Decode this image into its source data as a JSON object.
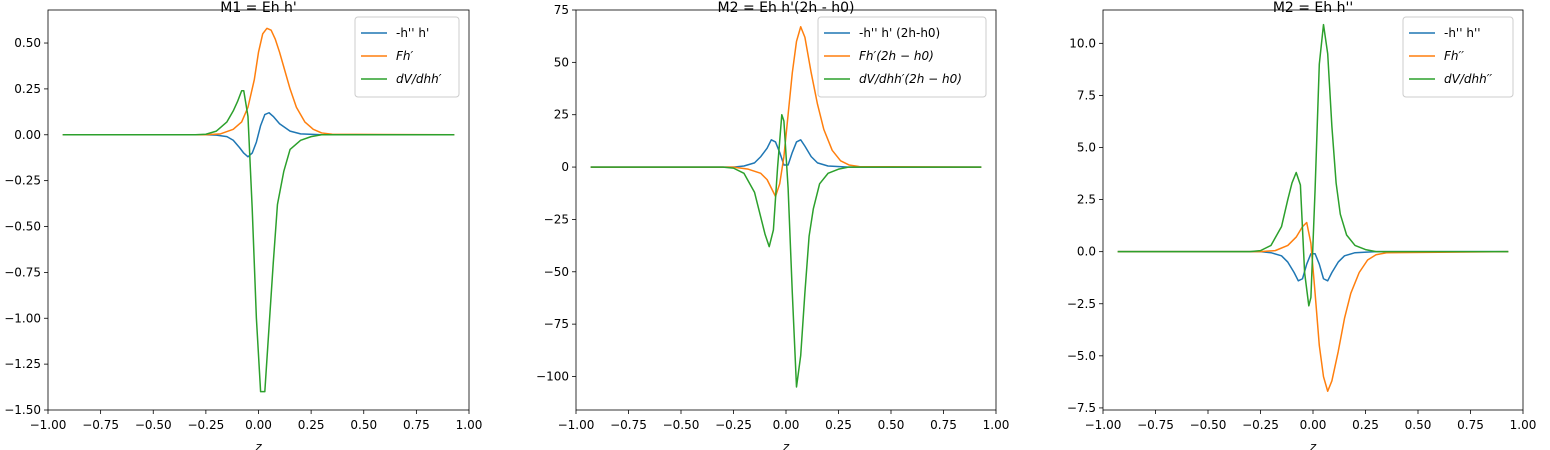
{
  "colors": {
    "blue": "#1f77b4",
    "orange": "#ff7f0e",
    "green": "#2ca02c"
  },
  "chart_data": [
    {
      "type": "line",
      "title": "M1 = Eh h'",
      "xlabel": "z",
      "ylabel": "",
      "xlim": [
        -1.0,
        1.0
      ],
      "ylim": [
        -1.5,
        0.68
      ],
      "xticks": [
        "−1.00",
        "−0.75",
        "−0.50",
        "−0.25",
        "0.00",
        "0.25",
        "0.50",
        "0.75",
        "1.00"
      ],
      "xtick_values": [
        -1.0,
        -0.75,
        -0.5,
        -0.25,
        0.0,
        0.25,
        0.5,
        0.75,
        1.0
      ],
      "yticks": [
        "−1.50",
        "−1.25",
        "−1.00",
        "−0.75",
        "−0.50",
        "−0.25",
        "0.00",
        "0.25",
        "0.50"
      ],
      "ytick_values": [
        -1.5,
        -1.25,
        -1.0,
        -0.75,
        -0.5,
        -0.25,
        0.0,
        0.25,
        0.5
      ],
      "legend_position": "top-right",
      "series": [
        {
          "name": "-h'' h'",
          "color": "#1f77b4",
          "x": [
            -0.93,
            -0.25,
            -0.2,
            -0.15,
            -0.12,
            -0.09,
            -0.07,
            -0.05,
            -0.03,
            -0.01,
            0.01,
            0.03,
            0.05,
            0.07,
            0.1,
            0.15,
            0.2,
            0.3,
            0.93
          ],
          "y": [
            0,
            0,
            -0.002,
            -0.01,
            -0.03,
            -0.07,
            -0.1,
            -0.12,
            -0.1,
            -0.04,
            0.05,
            0.11,
            0.12,
            0.1,
            0.06,
            0.02,
            0.005,
            0,
            0
          ]
        },
        {
          "name": "Fh′",
          "color": "#ff7f0e",
          "x": [
            -0.93,
            -0.25,
            -0.18,
            -0.12,
            -0.08,
            -0.05,
            -0.02,
            0.0,
            0.02,
            0.04,
            0.06,
            0.08,
            0.1,
            0.12,
            0.15,
            0.18,
            0.22,
            0.26,
            0.3,
            0.35,
            0.93
          ],
          "y": [
            0,
            0,
            0.005,
            0.03,
            0.07,
            0.15,
            0.3,
            0.45,
            0.55,
            0.58,
            0.57,
            0.52,
            0.45,
            0.37,
            0.25,
            0.15,
            0.07,
            0.03,
            0.01,
            0.003,
            0
          ]
        },
        {
          "name": "dV/dhh′",
          "color": "#2ca02c",
          "x": [
            -0.93,
            -0.3,
            -0.25,
            -0.2,
            -0.15,
            -0.12,
            -0.1,
            -0.08,
            -0.07,
            -0.05,
            -0.03,
            -0.01,
            0.01,
            0.03,
            0.05,
            0.07,
            0.09,
            0.12,
            0.15,
            0.2,
            0.25,
            0.3,
            0.93
          ],
          "y": [
            0,
            0,
            0.003,
            0.02,
            0.07,
            0.13,
            0.18,
            0.24,
            0.24,
            0.1,
            -0.4,
            -1.0,
            -1.4,
            -1.4,
            -1.05,
            -0.7,
            -0.38,
            -0.2,
            -0.08,
            -0.03,
            -0.01,
            0,
            0
          ]
        }
      ]
    },
    {
      "type": "line",
      "title": "M2 = Eh h'(2h - h0)",
      "xlabel": "z",
      "ylabel": "",
      "xlim": [
        -1.0,
        1.0
      ],
      "ylim": [
        -116,
        75
      ],
      "xticks": [
        "−1.00",
        "−0.75",
        "−0.50",
        "−0.25",
        "0.00",
        "0.25",
        "0.50",
        "0.75",
        "1.00"
      ],
      "xtick_values": [
        -1.0,
        -0.75,
        -0.5,
        -0.25,
        0.0,
        0.25,
        0.5,
        0.75,
        1.0
      ],
      "yticks": [
        "−100",
        "−75",
        "−50",
        "−25",
        "0",
        "25",
        "50",
        "75"
      ],
      "ytick_values": [
        -100,
        -75,
        -50,
        -25,
        0,
        25,
        50,
        75
      ],
      "legend_position": "top-right",
      "series": [
        {
          "name": "-h'' h' (2h-h0)",
          "color": "#1f77b4",
          "x": [
            -0.93,
            -0.25,
            -0.2,
            -0.15,
            -0.12,
            -0.09,
            -0.07,
            -0.05,
            -0.03,
            -0.01,
            0.01,
            0.03,
            0.05,
            0.07,
            0.09,
            0.12,
            0.15,
            0.2,
            0.3,
            0.93
          ],
          "y": [
            0,
            0,
            0.5,
            2,
            5,
            9,
            13,
            12,
            7,
            1,
            1,
            7,
            12,
            13,
            10,
            5,
            2,
            0.5,
            0,
            0
          ]
        },
        {
          "name": "Fh′(2h − h0)",
          "color": "#ff7f0e",
          "x": [
            -0.93,
            -0.25,
            -0.18,
            -0.12,
            -0.09,
            -0.07,
            -0.05,
            -0.03,
            -0.01,
            0.01,
            0.03,
            0.05,
            0.07,
            0.09,
            0.12,
            0.15,
            0.18,
            0.22,
            0.26,
            0.3,
            0.35,
            0.93
          ],
          "y": [
            0,
            0,
            -1,
            -3,
            -6,
            -10,
            -14,
            -8,
            5,
            25,
            45,
            60,
            67,
            62,
            45,
            30,
            18,
            8,
            3,
            1,
            0.2,
            0
          ]
        },
        {
          "name": "dV/dhh′(2h − h0)",
          "color": "#2ca02c",
          "x": [
            -0.93,
            -0.3,
            -0.25,
            -0.2,
            -0.15,
            -0.12,
            -0.1,
            -0.08,
            -0.06,
            -0.04,
            -0.02,
            -0.01,
            0.01,
            0.03,
            0.05,
            0.07,
            0.09,
            0.11,
            0.13,
            0.16,
            0.2,
            0.25,
            0.3,
            0.93
          ],
          "y": [
            0,
            0,
            -0.5,
            -3,
            -12,
            -24,
            -32,
            -38,
            -30,
            0,
            25,
            22,
            -10,
            -60,
            -105,
            -90,
            -60,
            -33,
            -20,
            -8,
            -3,
            -1,
            0,
            0
          ]
        }
      ]
    },
    {
      "type": "line",
      "title": "M2 = Eh h''",
      "xlabel": "z",
      "ylabel": "",
      "xlim": [
        -1.0,
        1.0
      ],
      "ylim": [
        -7.6,
        11.6
      ],
      "xticks": [
        "−1.00",
        "−0.75",
        "−0.50",
        "−0.25",
        "0.00",
        "0.25",
        "0.50",
        "0.75",
        "1.00"
      ],
      "xtick_values": [
        -1.0,
        -0.75,
        -0.5,
        -0.25,
        0.0,
        0.25,
        0.5,
        0.75,
        1.0
      ],
      "yticks": [
        "−7.5",
        "−5.0",
        "−2.5",
        "0.0",
        "2.5",
        "5.0",
        "7.5",
        "10.0"
      ],
      "ytick_values": [
        -7.5,
        -5.0,
        -2.5,
        0.0,
        2.5,
        5.0,
        7.5,
        10.0
      ],
      "legend_position": "top-right",
      "series": [
        {
          "name": "-h'' h''",
          "color": "#1f77b4",
          "x": [
            -0.93,
            -0.25,
            -0.2,
            -0.15,
            -0.12,
            -0.09,
            -0.07,
            -0.05,
            -0.03,
            -0.01,
            0.01,
            0.03,
            0.05,
            0.07,
            0.09,
            0.12,
            0.15,
            0.2,
            0.3,
            0.93
          ],
          "y": [
            0,
            0,
            -0.05,
            -0.2,
            -0.5,
            -1.0,
            -1.4,
            -1.3,
            -0.6,
            -0.1,
            -0.1,
            -0.6,
            -1.3,
            -1.4,
            -1.0,
            -0.5,
            -0.2,
            -0.05,
            0,
            0
          ]
        },
        {
          "name": "Fh′′",
          "color": "#ff7f0e",
          "x": [
            -0.93,
            -0.25,
            -0.18,
            -0.12,
            -0.08,
            -0.05,
            -0.03,
            -0.01,
            0.01,
            0.03,
            0.05,
            0.07,
            0.09,
            0.12,
            0.15,
            0.18,
            0.22,
            0.26,
            0.3,
            0.35,
            0.93
          ],
          "y": [
            0,
            0,
            0.05,
            0.3,
            0.7,
            1.2,
            1.4,
            0.4,
            -2.0,
            -4.5,
            -6.0,
            -6.7,
            -6.2,
            -4.8,
            -3.2,
            -2.0,
            -1.0,
            -0.4,
            -0.15,
            -0.05,
            0
          ]
        },
        {
          "name": "dV/dhh′′",
          "color": "#2ca02c",
          "x": [
            -0.93,
            -0.3,
            -0.25,
            -0.2,
            -0.15,
            -0.12,
            -0.1,
            -0.08,
            -0.06,
            -0.04,
            -0.02,
            -0.01,
            0.01,
            0.03,
            0.05,
            0.07,
            0.09,
            0.11,
            0.13,
            0.16,
            0.2,
            0.25,
            0.3,
            0.93
          ],
          "y": [
            0,
            0,
            0.05,
            0.3,
            1.2,
            2.5,
            3.3,
            3.8,
            3.2,
            -1.0,
            -2.6,
            -2.2,
            3.0,
            9.0,
            10.9,
            9.5,
            6.0,
            3.3,
            1.8,
            0.8,
            0.3,
            0.1,
            0,
            0
          ]
        }
      ]
    }
  ]
}
